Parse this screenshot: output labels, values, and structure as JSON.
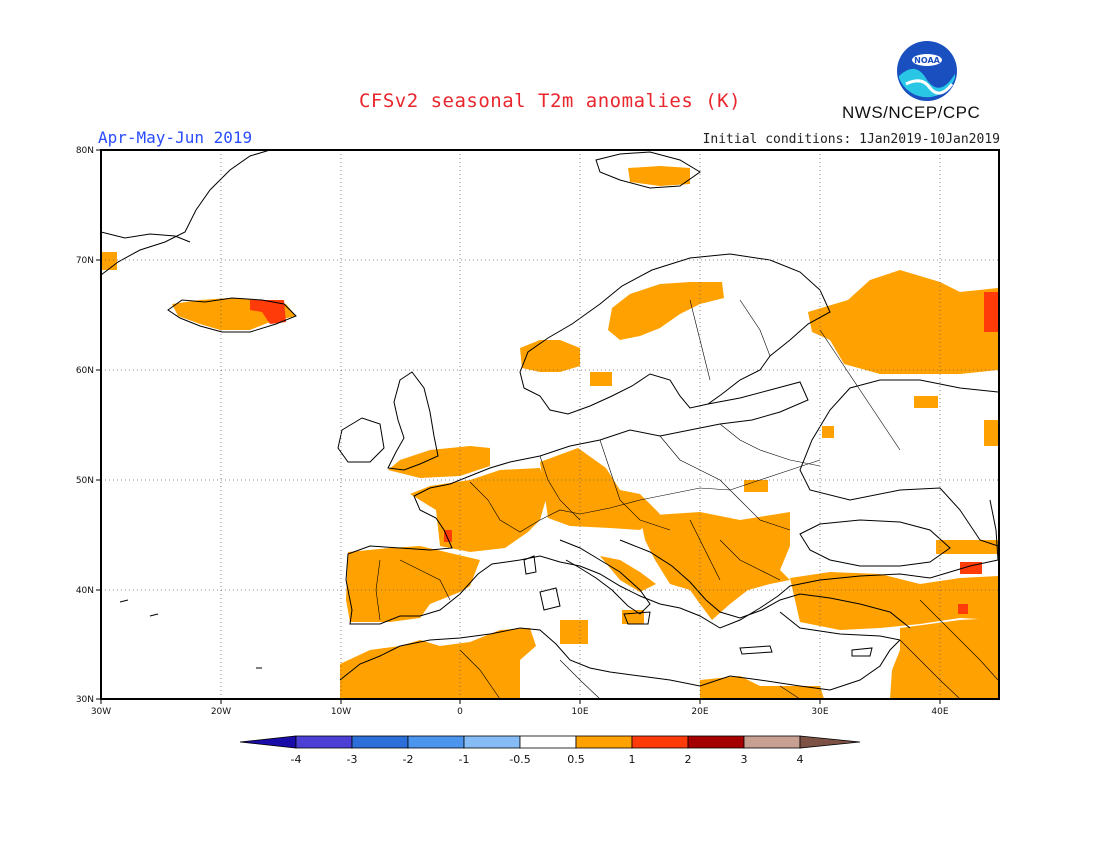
{
  "header": {
    "title": "CFSv2 seasonal T2m anomalies (K)",
    "period": "Apr-May-Jun 2019",
    "initial_conditions": "Initial conditions: 1Jan2019-10Jan2019",
    "organization": "NWS/NCEP/CPC",
    "logo_text": "NOAA"
  },
  "map": {
    "lon_range": [
      -30,
      45
    ],
    "lat_range": [
      30,
      80
    ],
    "lon_ticks": [
      "30W",
      "20W",
      "10W",
      "0",
      "10E",
      "20E",
      "30E",
      "40E"
    ],
    "lat_ticks": [
      "80N",
      "70N",
      "60N",
      "50N",
      "40N",
      "30N"
    ],
    "grid": "dotted",
    "anomaly_regions": [
      {
        "name": "Iberia",
        "level": "0.5-1"
      },
      {
        "name": "France",
        "level": "0.5-1"
      },
      {
        "name": "Britain",
        "level": "0.5-1"
      },
      {
        "name": "Central Europe",
        "level": "0.5-1"
      },
      {
        "name": "Balkans",
        "level": "0.5-1"
      },
      {
        "name": "Norway",
        "level": "0.5-1"
      },
      {
        "name": "Iceland",
        "level": "0.5-1"
      },
      {
        "name": "Northwest Russia",
        "level": "0.5-1"
      },
      {
        "name": "Turkey",
        "level": "0.5-1"
      },
      {
        "name": "Middle East",
        "level": "0.5-1"
      },
      {
        "name": "North Africa",
        "level": "0.5-1"
      },
      {
        "name": "Iceland east",
        "level": "1-2"
      },
      {
        "name": "Russia east edge",
        "level": "1-2"
      },
      {
        "name": "Caucasus",
        "level": "1-2"
      },
      {
        "name": "Bay of Biscay",
        "level": "1-2"
      }
    ]
  },
  "colorbar": {
    "labels": [
      "-4",
      "-3",
      "-2",
      "-1",
      "-0.5",
      "0.5",
      "1",
      "2",
      "3",
      "4"
    ],
    "colors": [
      "#1a0ca8",
      "#4b3fd6",
      "#2c6fd8",
      "#4b95ef",
      "#86bcf5",
      "#ffffff",
      "#ffa100",
      "#ff3b0a",
      "#a50000",
      "#c7a092",
      "#7d5245"
    ]
  }
}
